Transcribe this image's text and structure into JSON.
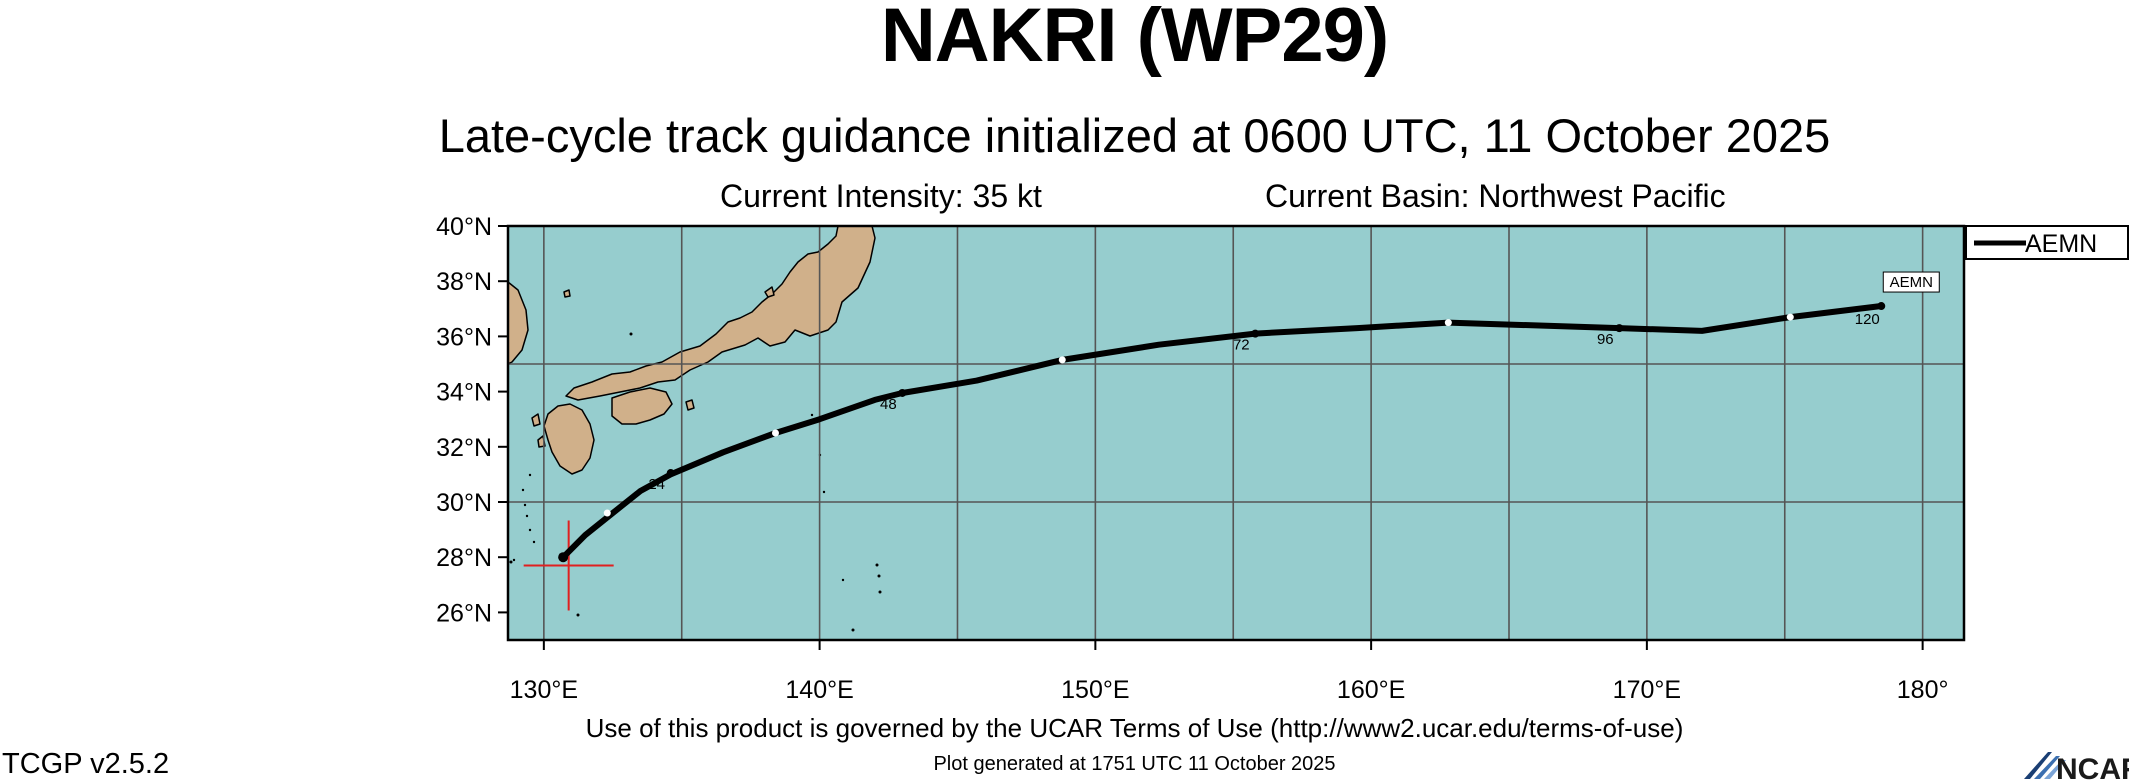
{
  "header": {
    "title": "NAKRI (WP29)",
    "subtitle": "Late-cycle track guidance initialized at 0600 UTC, 11 October 2025",
    "current_intensity": "Current Intensity: 35 kt",
    "current_basin": "Current Basin: Northwest Pacific"
  },
  "footer": {
    "terms": "Use of this product is governed by the UCAR Terms of Use (http://www2.ucar.edu/terms-of-use)",
    "generated": "Plot generated at 1751 UTC   11 October 2025",
    "version": "TCGP v2.5.2",
    "logo_text": "NCAR"
  },
  "map": {
    "lon_range": [
      128.7,
      181.5
    ],
    "lat_range": [
      25.0,
      40.0
    ],
    "lat_ticks": [
      {
        "value": 40,
        "label": "40°N"
      },
      {
        "value": 38,
        "label": "38°N"
      },
      {
        "value": 36,
        "label": "36°N"
      },
      {
        "value": 34,
        "label": "34°N"
      },
      {
        "value": 32,
        "label": "32°N"
      },
      {
        "value": 30,
        "label": "30°N"
      },
      {
        "value": 28,
        "label": "28°N"
      },
      {
        "value": 26,
        "label": "26°N"
      }
    ],
    "lon_ticks": [
      {
        "value": 130,
        "label": "130°E"
      },
      {
        "value": 140,
        "label": "140°E"
      },
      {
        "value": 150,
        "label": "150°E"
      },
      {
        "value": 160,
        "label": "160°E"
      },
      {
        "value": 170,
        "label": "170°E"
      },
      {
        "value": 180,
        "label": "180°"
      }
    ],
    "grid_lons": [
      130,
      135,
      140,
      145,
      150,
      155,
      160,
      165,
      170,
      175,
      180
    ],
    "grid_lats": [
      30,
      35
    ],
    "colors": {
      "ocean": "#96cdce",
      "land": "#d0b08a",
      "grid": "#555555",
      "track": "#000000",
      "current_position": "#e02020"
    },
    "current_position": {
      "lon": 130.9,
      "lat": 27.7
    }
  },
  "legend": {
    "entries": [
      {
        "name": "AEMN",
        "color": "#000000"
      }
    ]
  },
  "chart_data": {
    "type": "line",
    "series": [
      {
        "name": "AEMN",
        "points": [
          {
            "lon": 130.7,
            "lat": 28.0
          },
          {
            "lon": 131.5,
            "lat": 28.8
          },
          {
            "lon": 132.5,
            "lat": 29.6
          },
          {
            "lon": 133.5,
            "lat": 30.4
          },
          {
            "lon": 134.6,
            "lat": 31.0
          },
          {
            "lon": 136.5,
            "lat": 31.8
          },
          {
            "lon": 138.4,
            "lat": 32.5
          },
          {
            "lon": 140.0,
            "lat": 33.0
          },
          {
            "lon": 142.0,
            "lat": 33.7
          },
          {
            "lon": 143.0,
            "lat": 33.95
          },
          {
            "lon": 145.7,
            "lat": 34.4
          },
          {
            "lon": 148.8,
            "lat": 35.15
          },
          {
            "lon": 152.3,
            "lat": 35.7
          },
          {
            "lon": 155.8,
            "lat": 36.1
          },
          {
            "lon": 159.5,
            "lat": 36.3
          },
          {
            "lon": 162.8,
            "lat": 36.5
          },
          {
            "lon": 169.0,
            "lat": 36.3
          },
          {
            "lon": 172.0,
            "lat": 36.2
          },
          {
            "lon": 175.2,
            "lat": 36.7
          },
          {
            "lon": 178.5,
            "lat": 37.1
          }
        ],
        "markers": [
          {
            "lon": 130.7,
            "lat": 28.0,
            "kind": "start"
          },
          {
            "lon": 132.3,
            "lat": 29.6,
            "kind": "open"
          },
          {
            "lon": 134.6,
            "lat": 31.05,
            "kind": "closed",
            "label": "24"
          },
          {
            "lon": 138.4,
            "lat": 32.5,
            "kind": "open"
          },
          {
            "lon": 143.0,
            "lat": 33.95,
            "kind": "closed",
            "label": "48"
          },
          {
            "lon": 148.8,
            "lat": 35.15,
            "kind": "open"
          },
          {
            "lon": 155.8,
            "lat": 36.1,
            "kind": "closed",
            "label": "72"
          },
          {
            "lon": 162.8,
            "lat": 36.5,
            "kind": "open"
          },
          {
            "lon": 169.0,
            "lat": 36.3,
            "kind": "closed",
            "label": "96"
          },
          {
            "lon": 175.2,
            "lat": 36.7,
            "kind": "open"
          },
          {
            "lon": 178.5,
            "lat": 37.1,
            "kind": "end",
            "label": "120"
          }
        ],
        "end_label": "AEMN"
      }
    ]
  }
}
